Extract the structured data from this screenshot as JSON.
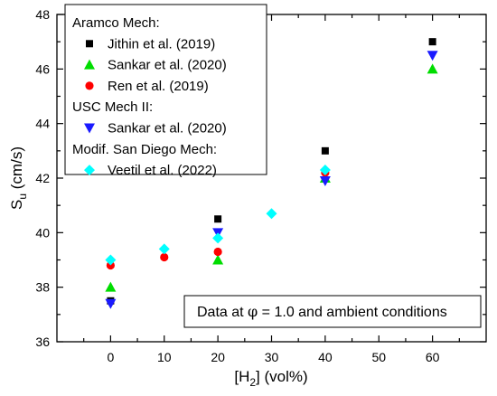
{
  "chart_data": {
    "type": "scatter",
    "xlabel": {
      "main": "[H",
      "sub": "2",
      "tail": "] (vol%)"
    },
    "ylabel": {
      "main": "S",
      "sub": "u",
      "tail": " (cm/s)"
    },
    "xlim": [
      -10,
      70
    ],
    "ylim": [
      36,
      48
    ],
    "xticks": [
      0,
      10,
      20,
      30,
      40,
      50,
      60
    ],
    "yticks": [
      36,
      38,
      40,
      42,
      44,
      46,
      48
    ],
    "grid": false,
    "legend_position": "top-left",
    "legend_groups": [
      {
        "header": "Aramco Mech:",
        "series": [
          0,
          1,
          2
        ]
      },
      {
        "header": "USC Mech II:",
        "series": [
          3
        ]
      },
      {
        "header": "Modif. San Diego Mech:",
        "series": [
          4
        ]
      }
    ],
    "annotation": {
      "before": "Data at ",
      "symbol": "φ",
      "after": " = 1.0 and ambient conditions"
    },
    "series": [
      {
        "name": "Jithin et al. (2019)",
        "marker": "square",
        "color": "#000000",
        "points": [
          [
            0,
            37.5
          ],
          [
            20,
            40.5
          ],
          [
            40,
            43.0
          ],
          [
            60,
            47.0
          ]
        ]
      },
      {
        "name": "Sankar et al. (2020)",
        "marker": "triangle-up",
        "color": "#00dd00",
        "points": [
          [
            0,
            38.0
          ],
          [
            20,
            39.0
          ],
          [
            40,
            42.0
          ],
          [
            60,
            46.0
          ]
        ]
      },
      {
        "name": "Ren et al. (2019)",
        "marker": "circle",
        "color": "#ff0000",
        "points": [
          [
            0,
            38.8
          ],
          [
            10,
            39.1
          ],
          [
            20,
            39.3
          ],
          [
            40,
            42.2
          ]
        ]
      },
      {
        "name": "Sankar et al. (2020)",
        "marker": "triangle-down",
        "color": "#1a1aff",
        "points": [
          [
            0,
            37.4
          ],
          [
            20,
            40.0
          ],
          [
            40,
            41.9
          ],
          [
            60,
            46.5
          ]
        ]
      },
      {
        "name": "Veetil et al. (2022)",
        "marker": "diamond",
        "color": "#00ffff",
        "points": [
          [
            0,
            39.0
          ],
          [
            10,
            39.4
          ],
          [
            20,
            39.8
          ],
          [
            30,
            40.7
          ],
          [
            40,
            42.3
          ]
        ]
      }
    ]
  }
}
